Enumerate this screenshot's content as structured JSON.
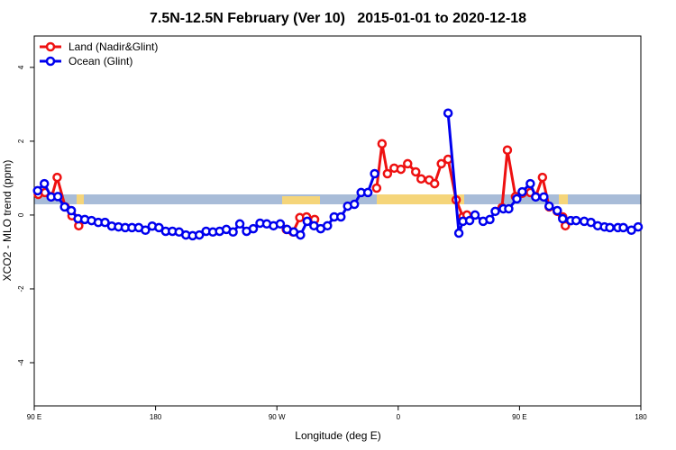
{
  "chart_data": {
    "type": "line",
    "title": "7.5N-12.5N February (Ver 10)   2015-01-01 to 2020-12-18",
    "x_label": "Longitude (deg E)",
    "y_label": "XCO2 - MLO trend (ppm)",
    "xlim": [
      90,
      540
    ],
    "xticks": [
      {
        "value": 90,
        "label": "90 E"
      },
      {
        "value": 180,
        "label": "180"
      },
      {
        "value": 270,
        "label": "90 W"
      },
      {
        "value": 360,
        "label": "0"
      },
      {
        "value": 450,
        "label": "90 E"
      },
      {
        "value": 540,
        "label": "180"
      }
    ],
    "ylim": [
      -5.17,
      4.85
    ],
    "yticks": [
      -4,
      -2,
      0,
      2,
      4
    ],
    "legend": "top-left",
    "series": [
      {
        "name": "Land (Nadir&Glint)",
        "color": "#ee1111",
        "x": [
          93,
          98,
          103,
          107,
          113,
          118,
          123,
          null,
          277,
          282,
          287,
          292,
          298,
          null,
          344,
          348,
          352,
          357,
          362,
          367,
          373,
          377,
          383,
          387,
          392,
          397,
          403,
          408,
          411,
          null,
          437,
          441,
          447,
          452,
          458,
          462,
          467,
          472,
          478,
          482,
          484
        ],
        "values": [
          0.56,
          0.61,
          0.5,
          1.02,
          0.22,
          -0.02,
          -0.29,
          null,
          -0.39,
          -0.46,
          -0.07,
          -0.05,
          -0.12,
          null,
          0.73,
          1.93,
          1.12,
          1.27,
          1.24,
          1.39,
          1.17,
          0.98,
          0.95,
          0.85,
          1.39,
          1.51,
          0.41,
          -0.05,
          0,
          null,
          0.2,
          1.76,
          0.5,
          0.59,
          0.61,
          0.5,
          1.02,
          0.22,
          0.1,
          -0.05,
          -0.29
        ]
      },
      {
        "name": "Ocean (Glint)",
        "color": "#0000ee",
        "x": [
          92.5,
          97.5,
          102.5,
          107.5,
          112.5,
          117.5,
          122.5,
          127.5,
          132.5,
          137.5,
          142.5,
          147.5,
          152.5,
          157.5,
          162.5,
          167.5,
          172.5,
          177.5,
          182.5,
          187.5,
          192.5,
          197.5,
          202.5,
          207.5,
          212.5,
          217.5,
          222.5,
          227.5,
          232.5,
          237.5,
          242.5,
          247.5,
          252.5,
          257.5,
          262.5,
          267.5,
          272.5,
          277.5,
          282.5,
          287.5,
          292.5,
          297.5,
          302.5,
          307.5,
          312.5,
          317.5,
          322.5,
          327.5,
          332.5,
          337.5,
          342.5,
          null,
          397,
          405,
          408,
          413,
          417,
          423,
          428,
          432,
          438,
          442,
          448,
          452,
          458,
          462,
          468,
          472,
          478,
          482,
          488,
          492,
          498,
          503,
          508,
          513,
          517,
          523,
          527,
          533,
          538
        ],
        "values": [
          0.66,
          0.85,
          0.49,
          0.5,
          0.22,
          0.12,
          -0.1,
          -0.12,
          -0.15,
          -0.2,
          -0.2,
          -0.3,
          -0.32,
          -0.34,
          -0.34,
          -0.34,
          -0.41,
          -0.3,
          -0.34,
          -0.44,
          -0.44,
          -0.46,
          -0.54,
          -0.56,
          -0.54,
          -0.44,
          -0.46,
          -0.44,
          -0.39,
          -0.46,
          -0.24,
          -0.44,
          -0.37,
          -0.22,
          -0.24,
          -0.29,
          -0.24,
          -0.39,
          -0.46,
          -0.54,
          -0.17,
          -0.29,
          -0.37,
          -0.29,
          -0.05,
          -0.05,
          0.24,
          0.29,
          0.61,
          0.61,
          1.12,
          null,
          2.76,
          -0.49,
          -0.17,
          -0.15,
          0,
          -0.17,
          -0.12,
          0.1,
          0.17,
          0.17,
          0.44,
          0.63,
          0.85,
          0.49,
          0.49,
          0.24,
          0.12,
          -0.1,
          -0.15,
          -0.15,
          -0.17,
          -0.2,
          -0.29,
          -0.32,
          -0.34,
          -0.34,
          -0.34,
          -0.41,
          -0.32
        ]
      }
    ]
  }
}
